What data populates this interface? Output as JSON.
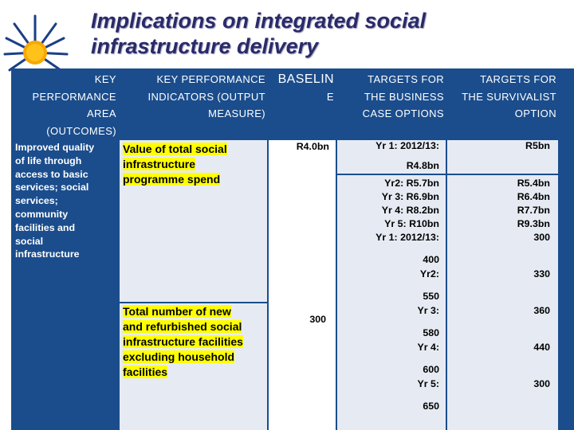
{
  "title": {
    "line1": "Implications on integrated social",
    "line2": "infrastructure delivery"
  },
  "headers": {
    "col1": [
      "KEY",
      "PERFORMANCE",
      "AREA",
      "(OUTCOMES)"
    ],
    "col2": [
      "KEY PERFORMANCE",
      "INDICATORS (OUTPUT",
      "MEASURE)"
    ],
    "col3": [
      "BASELIN",
      "E"
    ],
    "col4": [
      "TARGETS FOR",
      "THE BUSINESS",
      "CASE OPTIONS"
    ],
    "col5": [
      "TARGETS FOR",
      "THE SURVIVALIST",
      "OPTION"
    ]
  },
  "kpa": [
    "Improved quality",
    "of life through",
    "access to basic",
    "services; social",
    "services;",
    "community",
    "facilities and",
    "social",
    "infrastructure"
  ],
  "row1": {
    "indicator": [
      "Value of total social",
      "infrastructure",
      "programme spend"
    ],
    "baseline": "R4.0bn",
    "business_top": "Yr 1: 2012/13:",
    "business_value": "R4.8bn",
    "business_lines": [
      "Yr2: R5.7bn",
      "Yr 3: R6.9bn",
      "Yr 4: R8.2bn",
      "Yr 5: R10bn"
    ],
    "survivalist": [
      "R5bn",
      "R5.4bn",
      "R6.4bn",
      "R7.7bn",
      "R9.3bn"
    ]
  },
  "row2": {
    "indicator": [
      "Total number of new",
      "and refurbished social",
      "infrastructure facilities",
      "excluding household",
      "facilities"
    ],
    "baseline": "300",
    "business_lines": [
      "Yr 1: 2012/13:",
      "400",
      "Yr2:",
      "550",
      "Yr 3:",
      "580",
      "Yr 4:",
      "600",
      "Yr 5:",
      "650"
    ],
    "survivalist": [
      "300",
      "330",
      "360",
      "440",
      "300"
    ]
  },
  "colors": {
    "header_bg": "#1b4d8c",
    "cell_bg": "#e6ebf3",
    "highlight": "#ffff00",
    "title": "#2a2a6a"
  }
}
